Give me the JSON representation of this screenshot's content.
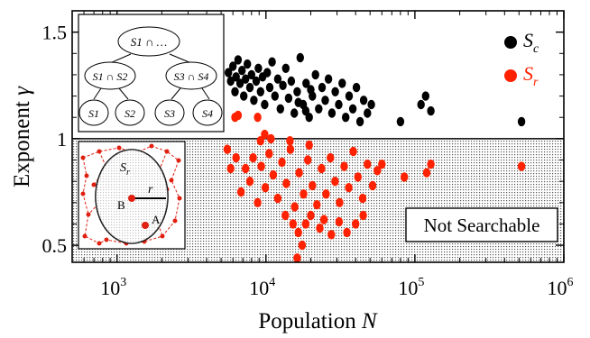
{
  "chart_data": {
    "type": "scatter",
    "xlabel": "Population",
    "xlabel_var": "N",
    "ylabel": "Exponent",
    "ylabel_var": "γ",
    "x_scale": "log",
    "xlim": [
      500,
      1000000
    ],
    "ylim": [
      0.42,
      1.6
    ],
    "x_ticks": [
      {
        "value": 1000,
        "base": "10",
        "exp": "3"
      },
      {
        "value": 10000,
        "base": "10",
        "exp": "4"
      },
      {
        "value": 100000,
        "base": "10",
        "exp": "5"
      },
      {
        "value": 1000000,
        "base": "10",
        "exp": "6"
      }
    ],
    "y_ticks": [
      {
        "value": 0.5,
        "label": "0.5"
      },
      {
        "value": 1,
        "label": "1"
      },
      {
        "value": 1.5,
        "label": "1.5"
      }
    ],
    "threshold_y": 1,
    "region_label": "Not Searchable",
    "legend_position": "top-right",
    "series": [
      {
        "name": "S",
        "sub": "c",
        "color": "#000000",
        "points": [
          [
            5600,
            1.31
          ],
          [
            5800,
            1.27
          ],
          [
            6000,
            1.34
          ],
          [
            6200,
            1.22
          ],
          [
            6300,
            1.29
          ],
          [
            6500,
            1.37
          ],
          [
            6700,
            1.26
          ],
          [
            6900,
            1.32
          ],
          [
            7100,
            1.2
          ],
          [
            7300,
            1.28
          ],
          [
            7500,
            1.35
          ],
          [
            7800,
            1.24
          ],
          [
            8000,
            1.3
          ],
          [
            8300,
            1.18
          ],
          [
            8600,
            1.27
          ],
          [
            8900,
            1.33
          ],
          [
            9200,
            1.22
          ],
          [
            9500,
            1.29
          ],
          [
            9800,
            1.16
          ],
          [
            10200,
            1.31
          ],
          [
            10600,
            1.24
          ],
          [
            11000,
            1.36
          ],
          [
            11500,
            1.2
          ],
          [
            12000,
            1.28
          ],
          [
            12500,
            1.14
          ],
          [
            13000,
            1.25
          ],
          [
            13600,
            1.33
          ],
          [
            14200,
            1.19
          ],
          [
            14800,
            1.27
          ],
          [
            15500,
            1.12
          ],
          [
            16200,
            1.22
          ],
          [
            17000,
            1.38
          ],
          [
            17800,
            1.16
          ],
          [
            18600,
            1.26
          ],
          [
            19500,
            1.1
          ],
          [
            20500,
            1.2
          ],
          [
            21500,
            1.3
          ],
          [
            22600,
            1.14
          ],
          [
            23800,
            1.24
          ],
          [
            25000,
            1.18
          ],
          [
            26300,
            1.28
          ],
          [
            27700,
            1.12
          ],
          [
            29200,
            1.22
          ],
          [
            30800,
            1.16
          ],
          [
            32500,
            1.26
          ],
          [
            34300,
            1.1
          ],
          [
            36200,
            1.2
          ],
          [
            38300,
            1.14
          ],
          [
            40500,
            1.24
          ],
          [
            42800,
            1.08
          ],
          [
            45300,
            1.18
          ],
          [
            48000,
            1.12
          ],
          [
            51000,
            1.16
          ],
          [
            16500,
            1.17
          ],
          [
            18500,
            1.13
          ],
          [
            20000,
            1.23
          ],
          [
            80000,
            1.08
          ],
          [
            110000,
            1.16
          ],
          [
            118000,
            1.2
          ],
          [
            128000,
            1.13
          ],
          [
            520000,
            1.08
          ]
        ]
      },
      {
        "name": "S",
        "sub": "r",
        "color": "#ff2200",
        "points": [
          [
            5500,
            0.95
          ],
          [
            6200,
            1.1
          ],
          [
            6500,
            1.11
          ],
          [
            8800,
            1.1
          ],
          [
            9200,
            0.99
          ],
          [
            9800,
            1.02
          ],
          [
            10800,
            1.0
          ],
          [
            14500,
            0.99
          ],
          [
            19500,
            0.97
          ],
          [
            5800,
            0.86
          ],
          [
            6300,
            0.91
          ],
          [
            6800,
            0.75
          ],
          [
            7300,
            0.86
          ],
          [
            7800,
            0.8
          ],
          [
            8200,
            0.91
          ],
          [
            8800,
            0.7
          ],
          [
            9300,
            0.87
          ],
          [
            9900,
            0.77
          ],
          [
            10500,
            0.93
          ],
          [
            11200,
            0.83
          ],
          [
            12000,
            0.72
          ],
          [
            12800,
            0.89
          ],
          [
            13700,
            0.79
          ],
          [
            14600,
            0.95
          ],
          [
            15600,
            0.68
          ],
          [
            16700,
            0.84
          ],
          [
            17900,
            0.74
          ],
          [
            19100,
            0.9
          ],
          [
            20500,
            0.78
          ],
          [
            22000,
            0.69
          ],
          [
            23600,
            0.86
          ],
          [
            25300,
            0.74
          ],
          [
            27100,
            0.91
          ],
          [
            29100,
            0.8
          ],
          [
            31200,
            0.7
          ],
          [
            33500,
            0.87
          ],
          [
            36000,
            0.77
          ],
          [
            38600,
            0.94
          ],
          [
            41500,
            0.82
          ],
          [
            44600,
            0.72
          ],
          [
            48000,
            0.88
          ],
          [
            52000,
            0.78
          ],
          [
            56000,
            0.85
          ],
          [
            60000,
            0.88
          ],
          [
            13500,
            0.64
          ],
          [
            15200,
            0.6
          ],
          [
            16500,
            0.56
          ],
          [
            17500,
            0.5
          ],
          [
            18500,
            0.6
          ],
          [
            20000,
            0.64
          ],
          [
            23000,
            0.58
          ],
          [
            24500,
            0.62
          ],
          [
            27500,
            0.55
          ],
          [
            31000,
            0.61
          ],
          [
            35000,
            0.56
          ],
          [
            40000,
            0.6
          ],
          [
            45000,
            0.64
          ],
          [
            16200,
            0.44
          ],
          [
            85000,
            0.82
          ],
          [
            120000,
            0.84
          ],
          [
            128000,
            0.88
          ],
          [
            520000,
            0.87
          ]
        ]
      }
    ],
    "inset_tree": {
      "root": "S1 ∩ …",
      "children": [
        {
          "label": "S1 ∩ S2",
          "leaves": [
            "S1",
            "S2"
          ]
        },
        {
          "label": "S3 ∩ S4",
          "leaves": [
            "S3",
            "S4"
          ]
        }
      ]
    },
    "inset_geometry": {
      "region_label": "S",
      "region_sub": "r",
      "radius_label": "r",
      "point_a": "A",
      "point_b": "B"
    }
  }
}
